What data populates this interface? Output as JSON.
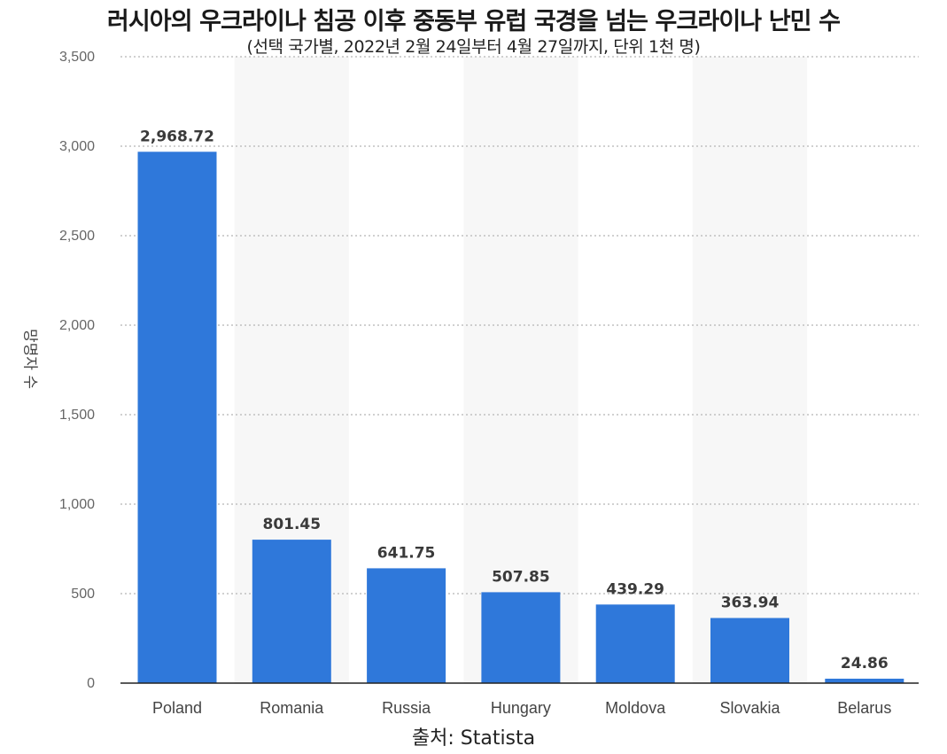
{
  "title": "러시아의 우크라이나 침공 이후 중동부 유럽 국경을 넘는 우크라이나 난민 수",
  "subtitle": "(선택 국가별, 2022년 2월 24일부터 4월 27일까지, 단위 1천 명)",
  "source": "출처: Statista",
  "colors": {
    "bar": "#2f78da",
    "band": "#f7f7f7",
    "grid": "#b5b5b5",
    "axis": "#222222"
  },
  "chart_data": {
    "type": "bar",
    "title": "러시아의 우크라이나 침공 이후 중동부 유럽 국경을 넘는 우크라이나 난민 수",
    "ylabel": "망명자 수",
    "xlabel": "",
    "categories": [
      "Poland",
      "Romania",
      "Russia",
      "Hungary",
      "Moldova",
      "Slovakia",
      "Belarus"
    ],
    "values": [
      2968.72,
      801.45,
      641.75,
      507.85,
      439.29,
      363.94,
      24.86
    ],
    "value_labels": [
      "2,968.72",
      "801.45",
      "641.75",
      "507.85",
      "439.29",
      "363.94",
      "24.86"
    ],
    "ylim": [
      0,
      3500
    ],
    "yticks": [
      0,
      500,
      1000,
      1500,
      2000,
      2500,
      3000,
      3500
    ],
    "ytick_labels": [
      "0",
      "500",
      "1,000",
      "1,500",
      "2,000",
      "2,500",
      "3,000",
      "3,500"
    ],
    "grid": true,
    "legend": "none"
  }
}
